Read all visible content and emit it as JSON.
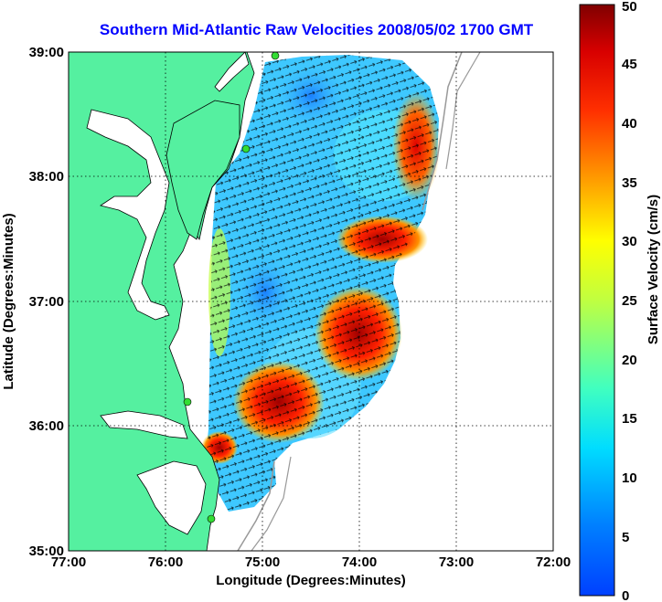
{
  "title": "Southern Mid-Atlantic Raw Velocities 2008/05/02 1700 GMT",
  "x_axis": {
    "label": "Longitude (Degrees:Minutes)",
    "ticks": [
      "77:00",
      "76:00",
      "75:00",
      "74:00",
      "73:00",
      "72:00"
    ]
  },
  "y_axis": {
    "label": "Latitude (Degrees:Minutes)",
    "ticks": [
      "39:00",
      "38:00",
      "37:00",
      "36:00",
      "35:00"
    ]
  },
  "colorbar": {
    "label": "Surface Velocity (cm/s)",
    "ticks": [
      "0",
      "5",
      "10",
      "15",
      "20",
      "25",
      "30",
      "35",
      "40",
      "45",
      "50"
    ],
    "range": [
      0,
      50
    ],
    "colormap": "jet"
  },
  "map_extent": {
    "lon": [
      -77,
      -72
    ],
    "lat": [
      35,
      39
    ]
  },
  "grid": "dotted",
  "colors": {
    "land": "#55f0a0",
    "coast": "#000000",
    "bathymetry": "#999999",
    "station": "#33dd33",
    "title": "#0000ff"
  },
  "vector_arrows": "black",
  "stations": [
    "station-1",
    "station-2",
    "station-3",
    "station-4"
  ]
}
